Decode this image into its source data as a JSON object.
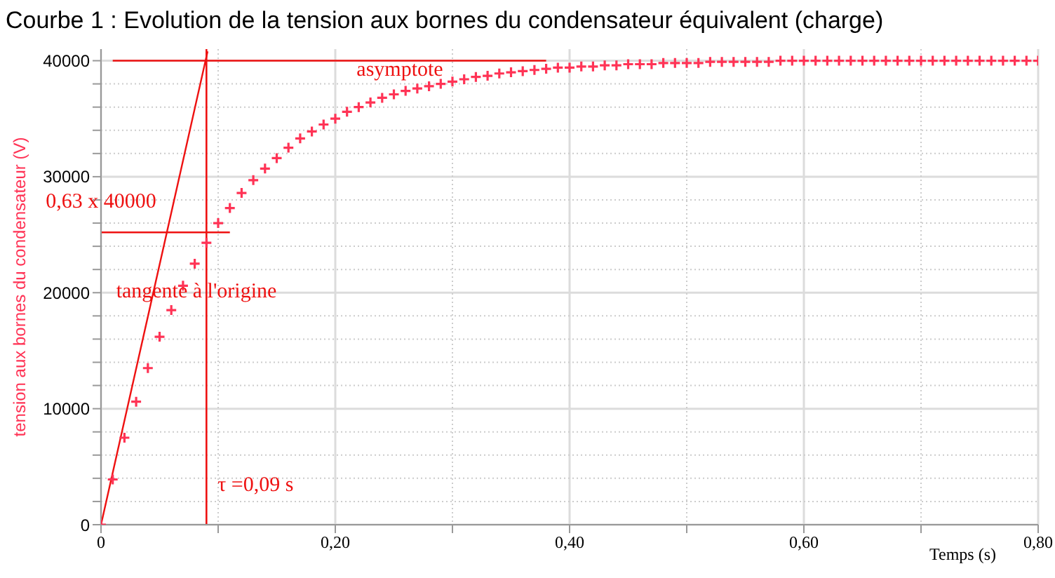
{
  "chart_data": {
    "type": "scatter",
    "title": "Courbe 1 : Evolution de la tension aux bornes du condensateur équivalent (charge)",
    "xlabel": "Temps (s)",
    "ylabel": "tension aux bornes du condensateur (V)",
    "x": [
      0,
      0.01,
      0.02,
      0.03,
      0.04,
      0.05,
      0.06,
      0.07,
      0.08,
      0.09,
      0.1,
      0.11,
      0.12,
      0.13,
      0.14,
      0.15,
      0.16,
      0.17,
      0.18,
      0.19,
      0.2,
      0.21,
      0.22,
      0.23,
      0.24,
      0.25,
      0.26,
      0.27,
      0.28,
      0.29,
      0.3,
      0.31,
      0.32,
      0.33,
      0.34,
      0.35,
      0.36,
      0.37,
      0.38,
      0.39,
      0.4,
      0.41,
      0.42,
      0.43,
      0.44,
      0.45,
      0.46,
      0.47,
      0.48,
      0.49,
      0.5,
      0.51,
      0.52,
      0.53,
      0.54,
      0.55,
      0.56,
      0.57,
      0.58,
      0.59,
      0.6,
      0.61,
      0.62,
      0.63,
      0.64,
      0.65,
      0.66,
      0.67,
      0.68,
      0.69,
      0.7,
      0.71,
      0.72,
      0.73,
      0.74,
      0.75,
      0.76,
      0.77,
      0.78,
      0.79,
      0.8
    ],
    "series": [
      {
        "marker": "cross",
        "color": "#ff3355",
        "values": [
          0,
          3900,
          7500,
          10600,
          13500,
          16200,
          18500,
          20600,
          22500,
          24300,
          26000,
          27300,
          28600,
          29700,
          30700,
          31600,
          32500,
          33300,
          33900,
          34500,
          35000,
          35600,
          36000,
          36400,
          36800,
          37100,
          37400,
          37600,
          37800,
          38000,
          38200,
          38400,
          38600,
          38700,
          38900,
          39000,
          39100,
          39200,
          39300,
          39400,
          39400,
          39500,
          39500,
          39600,
          39600,
          39700,
          39700,
          39700,
          39800,
          39800,
          39800,
          39800,
          39900,
          39900,
          39900,
          39900,
          39900,
          39900,
          40000,
          40000,
          40000,
          40000,
          40000,
          40000,
          40000,
          40000,
          40000,
          40000,
          40000,
          40000,
          40000,
          40000,
          40000,
          40000,
          40000,
          40000,
          40000,
          40000,
          40000,
          40000,
          40000
        ]
      },
      {
        "type": "line",
        "color": "#ee1111",
        "x": [
          0,
          0.091
        ],
        "values": [
          0,
          40800
        ]
      },
      {
        "type": "line",
        "color": "#ee1111",
        "x": [
          0.01,
          0.38
        ],
        "values": [
          40000,
          40000
        ]
      },
      {
        "type": "line",
        "color": "#ee1111",
        "x": [
          0,
          0.11
        ],
        "values": [
          25200,
          25200
        ]
      }
    ],
    "ref_lines": [
      {
        "axis": "x",
        "value": 0.09,
        "label": "τ =0,09 s",
        "color": "#ee1111"
      }
    ],
    "annotations": [
      "asymptote",
      "0,63 x 40000",
      "tangente à l'origine"
    ],
    "xlim": [
      0,
      0.8
    ],
    "xticks": [
      0,
      {
        "value": 0.1,
        "label": null
      },
      {
        "value": 0.2,
        "label": "0,20"
      },
      {
        "value": 0.3,
        "label": null
      },
      {
        "value": 0.4,
        "label": "0,40"
      },
      {
        "value": 0.5,
        "label": null
      },
      {
        "value": 0.6,
        "label": "0,60"
      },
      {
        "value": 0.7,
        "label": null
      },
      {
        "value": 0.8,
        "label": "0,80"
      }
    ],
    "ylim": [
      0,
      41000
    ],
    "yticks": [
      0,
      {
        "value": 2000,
        "label": null
      },
      {
        "value": 4000,
        "label": null
      },
      {
        "value": 6000,
        "label": null
      },
      {
        "value": 8000,
        "label": null
      },
      10000,
      {
        "value": 12000,
        "label": null
      },
      {
        "value": 14000,
        "label": null
      },
      {
        "value": 16000,
        "label": null
      },
      {
        "value": 18000,
        "label": null
      },
      20000,
      {
        "value": 22000,
        "label": null
      },
      {
        "value": 24000,
        "label": null
      },
      {
        "value": 26000,
        "label": null
      },
      {
        "value": 28000,
        "label": null
      },
      30000,
      {
        "value": 32000,
        "label": null
      },
      {
        "value": 34000,
        "label": null
      },
      {
        "value": 36000,
        "label": null
      },
      {
        "value": 38000,
        "label": null
      },
      40000
    ],
    "grid": true
  }
}
